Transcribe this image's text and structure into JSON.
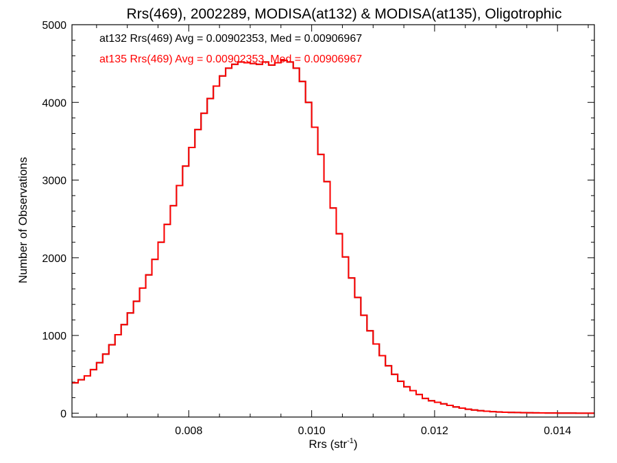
{
  "chart_data": {
    "type": "line",
    "title": "Rrs(469), 2002289, MODISA(at132) & MODISA(at135), Oligotrophic",
    "xlabel": "Rrs (str",
    "xlabel_sup": "-1",
    "xlabel_close": ")",
    "ylabel": "Number of Observations",
    "xlim": [
      0.0061,
      0.0146
    ],
    "ylim": [
      -50,
      5000
    ],
    "x_ticks": [
      0.008,
      0.01,
      0.012,
      0.014
    ],
    "x_tick_labels": [
      "0.008",
      "0.010",
      "0.012",
      "0.014"
    ],
    "y_ticks": [
      0,
      1000,
      2000,
      3000,
      4000,
      5000
    ],
    "y_tick_labels": [
      "0",
      "1000",
      "2000",
      "3000",
      "4000",
      "5000"
    ],
    "grid": false,
    "legend_entries": [
      "at132 Rrs(469) Avg = 0.00902353, Med = 0.00906967",
      "at135 Rrs(469) Avg = 0.00902353, Med = 0.00906967"
    ],
    "series": [
      {
        "name": "at132",
        "color": "#000000",
        "step": true,
        "x": [
          0.0061,
          0.0062,
          0.0063,
          0.0064,
          0.0065,
          0.0066,
          0.0067,
          0.0068,
          0.0069,
          0.007,
          0.0071,
          0.0072,
          0.0073,
          0.0074,
          0.0075,
          0.0076,
          0.0077,
          0.0078,
          0.0079,
          0.008,
          0.0081,
          0.0082,
          0.0083,
          0.0084,
          0.0085,
          0.0086,
          0.0087,
          0.0088,
          0.0089,
          0.009,
          0.0091,
          0.0092,
          0.0093,
          0.0094,
          0.0095,
          0.0096,
          0.0097,
          0.0098,
          0.0099,
          0.01,
          0.0101,
          0.0102,
          0.0103,
          0.0104,
          0.0105,
          0.0106,
          0.0107,
          0.0108,
          0.0109,
          0.011,
          0.0111,
          0.0112,
          0.0113,
          0.0114,
          0.0115,
          0.0116,
          0.0117,
          0.0118,
          0.0119,
          0.012,
          0.0121,
          0.0122,
          0.0123,
          0.0124,
          0.0125,
          0.0126,
          0.0127,
          0.0128,
          0.0129,
          0.013,
          0.0131,
          0.0132,
          0.0133,
          0.0134,
          0.0135,
          0.0136,
          0.0137,
          0.0138,
          0.0139,
          0.014,
          0.0141,
          0.0142,
          0.0143,
          0.0144,
          0.0145,
          0.0146
        ],
        "y": [
          390,
          430,
          480,
          560,
          650,
          760,
          880,
          1010,
          1140,
          1290,
          1440,
          1610,
          1780,
          1980,
          2200,
          2430,
          2670,
          2930,
          3180,
          3420,
          3650,
          3860,
          4050,
          4210,
          4340,
          4440,
          4490,
          4520,
          4510,
          4500,
          4490,
          4520,
          4480,
          4510,
          4540,
          4520,
          4440,
          4270,
          4000,
          3680,
          3330,
          2980,
          2640,
          2310,
          2010,
          1740,
          1490,
          1260,
          1060,
          890,
          740,
          610,
          500,
          410,
          340,
          290,
          240,
          190,
          160,
          140,
          120,
          100,
          80,
          65,
          50,
          40,
          32,
          25,
          20,
          15,
          12,
          10,
          8,
          6,
          5,
          4,
          3,
          2,
          2,
          1,
          1,
          1,
          0,
          0,
          0,
          0
        ]
      },
      {
        "name": "at135",
        "color": "#ff0000",
        "step": true,
        "x": [
          0.0061,
          0.0062,
          0.0063,
          0.0064,
          0.0065,
          0.0066,
          0.0067,
          0.0068,
          0.0069,
          0.007,
          0.0071,
          0.0072,
          0.0073,
          0.0074,
          0.0075,
          0.0076,
          0.0077,
          0.0078,
          0.0079,
          0.008,
          0.0081,
          0.0082,
          0.0083,
          0.0084,
          0.0085,
          0.0086,
          0.0087,
          0.0088,
          0.0089,
          0.009,
          0.0091,
          0.0092,
          0.0093,
          0.0094,
          0.0095,
          0.0096,
          0.0097,
          0.0098,
          0.0099,
          0.01,
          0.0101,
          0.0102,
          0.0103,
          0.0104,
          0.0105,
          0.0106,
          0.0107,
          0.0108,
          0.0109,
          0.011,
          0.0111,
          0.0112,
          0.0113,
          0.0114,
          0.0115,
          0.0116,
          0.0117,
          0.0118,
          0.0119,
          0.012,
          0.0121,
          0.0122,
          0.0123,
          0.0124,
          0.0125,
          0.0126,
          0.0127,
          0.0128,
          0.0129,
          0.013,
          0.0131,
          0.0132,
          0.0133,
          0.0134,
          0.0135,
          0.0136,
          0.0137,
          0.0138,
          0.0139,
          0.014,
          0.0141,
          0.0142,
          0.0143,
          0.0144,
          0.0145,
          0.0146
        ],
        "y": [
          390,
          430,
          480,
          560,
          650,
          760,
          880,
          1010,
          1140,
          1290,
          1440,
          1610,
          1780,
          1980,
          2200,
          2430,
          2670,
          2930,
          3180,
          3420,
          3650,
          3860,
          4050,
          4210,
          4340,
          4440,
          4490,
          4520,
          4510,
          4500,
          4490,
          4520,
          4480,
          4510,
          4540,
          4520,
          4440,
          4270,
          4000,
          3680,
          3330,
          2980,
          2640,
          2310,
          2010,
          1740,
          1490,
          1260,
          1060,
          890,
          740,
          610,
          500,
          410,
          340,
          290,
          240,
          190,
          160,
          140,
          120,
          100,
          80,
          65,
          50,
          40,
          32,
          25,
          20,
          15,
          12,
          10,
          8,
          6,
          5,
          4,
          3,
          2,
          2,
          1,
          1,
          1,
          0,
          0,
          0,
          0
        ]
      }
    ]
  }
}
